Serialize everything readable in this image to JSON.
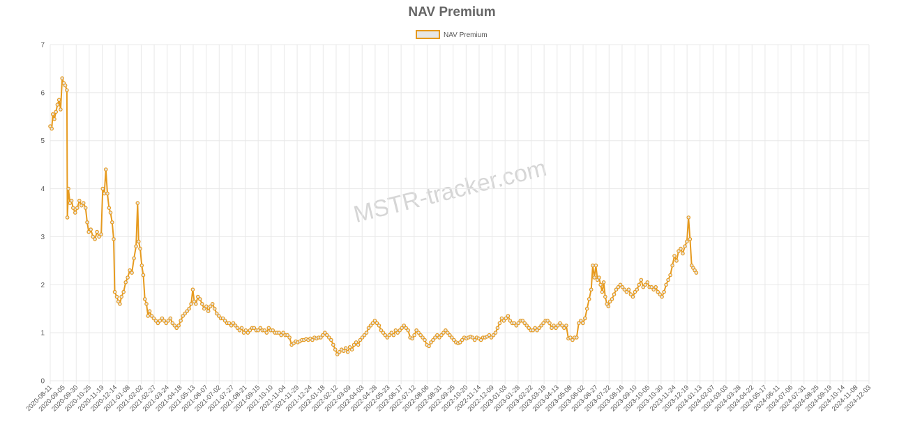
{
  "chart_data": {
    "type": "line",
    "title": "NAV Premium",
    "legend": {
      "label": "NAV Premium",
      "placement": "top-center"
    },
    "watermark": "MSTR-tracker.com",
    "series_color": "#e69a1e",
    "fill_color": "#e6e6e6",
    "grid_color": "#e8e8e8",
    "ylim": [
      0,
      7
    ],
    "yticks": [
      0,
      1,
      2,
      3,
      4,
      5,
      6,
      7
    ],
    "x_labels": [
      "2020-08-11",
      "2020-09-05",
      "2020-09-30",
      "2020-10-25",
      "2020-11-19",
      "2020-12-14",
      "2021-01-08",
      "2021-02-02",
      "2021-02-27",
      "2021-03-24",
      "2021-04-18",
      "2021-05-13",
      "2021-06-07",
      "2021-07-02",
      "2021-07-27",
      "2021-08-21",
      "2021-09-15",
      "2021-10-10",
      "2021-11-04",
      "2021-11-29",
      "2021-12-24",
      "2022-01-18",
      "2022-02-12",
      "2022-03-09",
      "2022-04-03",
      "2022-04-28",
      "2022-05-23",
      "2022-06-17",
      "2022-07-12",
      "2022-08-06",
      "2022-08-31",
      "2022-09-25",
      "2022-10-20",
      "2022-11-14",
      "2022-12-09",
      "2023-01-03",
      "2023-01-28",
      "2023-02-22",
      "2023-03-19",
      "2023-04-13",
      "2023-05-08",
      "2023-06-02",
      "2023-06-27",
      "2023-07-22",
      "2023-08-16",
      "2023-09-10",
      "2023-10-05",
      "2023-10-30",
      "2023-11-24",
      "2023-12-19",
      "2024-01-13",
      "2024-02-07",
      "2024-03-03",
      "2024-03-28",
      "2024-04-22",
      "2024-05-17",
      "2024-06-11",
      "2024-07-06",
      "2024-07-31",
      "2024-08-25",
      "2024-09-19",
      "2024-10-14",
      "2024-11-08",
      "2024-12-03"
    ],
    "x_range": [
      0,
      1574
    ],
    "points_day_value": [
      [
        0,
        5.3
      ],
      [
        3,
        5.25
      ],
      [
        5,
        5.55
      ],
      [
        8,
        5.45
      ],
      [
        11,
        5.6
      ],
      [
        14,
        5.75
      ],
      [
        17,
        5.85
      ],
      [
        20,
        5.65
      ],
      [
        23,
        6.3
      ],
      [
        26,
        6.2
      ],
      [
        29,
        6.15
      ],
      [
        32,
        6.05
      ],
      [
        33,
        3.4
      ],
      [
        35,
        4.0
      ],
      [
        38,
        3.7
      ],
      [
        41,
        3.75
      ],
      [
        44,
        3.6
      ],
      [
        48,
        3.5
      ],
      [
        52,
        3.6
      ],
      [
        56,
        3.75
      ],
      [
        60,
        3.65
      ],
      [
        64,
        3.7
      ],
      [
        68,
        3.6
      ],
      [
        71,
        3.3
      ],
      [
        74,
        3.1
      ],
      [
        78,
        3.15
      ],
      [
        82,
        3.0
      ],
      [
        86,
        2.95
      ],
      [
        90,
        3.1
      ],
      [
        94,
        3.0
      ],
      [
        98,
        3.05
      ],
      [
        101,
        4.0
      ],
      [
        104,
        3.9
      ],
      [
        107,
        4.4
      ],
      [
        110,
        3.9
      ],
      [
        113,
        3.6
      ],
      [
        116,
        3.5
      ],
      [
        119,
        3.3
      ],
      [
        122,
        2.95
      ],
      [
        124,
        1.85
      ],
      [
        128,
        1.75
      ],
      [
        131,
        1.65
      ],
      [
        134,
        1.6
      ],
      [
        137,
        1.75
      ],
      [
        141,
        1.85
      ],
      [
        145,
        2.05
      ],
      [
        149,
        2.15
      ],
      [
        153,
        2.3
      ],
      [
        157,
        2.25
      ],
      [
        161,
        2.55
      ],
      [
        165,
        2.8
      ],
      [
        168,
        3.7
      ],
      [
        170,
        2.9
      ],
      [
        173,
        2.75
      ],
      [
        176,
        2.4
      ],
      [
        179,
        2.2
      ],
      [
        182,
        1.7
      ],
      [
        185,
        1.6
      ],
      [
        188,
        1.35
      ],
      [
        191,
        1.45
      ],
      [
        195,
        1.35
      ],
      [
        199,
        1.3
      ],
      [
        203,
        1.25
      ],
      [
        207,
        1.2
      ],
      [
        211,
        1.25
      ],
      [
        215,
        1.3
      ],
      [
        219,
        1.25
      ],
      [
        223,
        1.2
      ],
      [
        227,
        1.25
      ],
      [
        231,
        1.3
      ],
      [
        235,
        1.2
      ],
      [
        239,
        1.15
      ],
      [
        243,
        1.1
      ],
      [
        247,
        1.15
      ],
      [
        251,
        1.25
      ],
      [
        255,
        1.35
      ],
      [
        259,
        1.4
      ],
      [
        263,
        1.45
      ],
      [
        267,
        1.5
      ],
      [
        271,
        1.6
      ],
      [
        274,
        1.9
      ],
      [
        277,
        1.65
      ],
      [
        280,
        1.6
      ],
      [
        284,
        1.75
      ],
      [
        288,
        1.7
      ],
      [
        292,
        1.6
      ],
      [
        296,
        1.5
      ],
      [
        300,
        1.55
      ],
      [
        304,
        1.45
      ],
      [
        308,
        1.55
      ],
      [
        312,
        1.6
      ],
      [
        316,
        1.5
      ],
      [
        320,
        1.4
      ],
      [
        324,
        1.35
      ],
      [
        328,
        1.3
      ],
      [
        332,
        1.3
      ],
      [
        336,
        1.25
      ],
      [
        340,
        1.2
      ],
      [
        344,
        1.2
      ],
      [
        348,
        1.15
      ],
      [
        352,
        1.2
      ],
      [
        356,
        1.15
      ],
      [
        360,
        1.1
      ],
      [
        364,
        1.05
      ],
      [
        368,
        1.1
      ],
      [
        372,
        1.0
      ],
      [
        376,
        1.05
      ],
      [
        380,
        1.0
      ],
      [
        384,
        1.05
      ],
      [
        388,
        1.1
      ],
      [
        392,
        1.1
      ],
      [
        396,
        1.05
      ],
      [
        400,
        1.05
      ],
      [
        404,
        1.1
      ],
      [
        408,
        1.05
      ],
      [
        412,
        1.05
      ],
      [
        416,
        1.0
      ],
      [
        420,
        1.1
      ],
      [
        424,
        1.05
      ],
      [
        428,
        1.05
      ],
      [
        432,
        1.0
      ],
      [
        436,
        1.0
      ],
      [
        440,
        1.0
      ],
      [
        444,
        0.95
      ],
      [
        448,
        1.0
      ],
      [
        452,
        0.95
      ],
      [
        456,
        0.95
      ],
      [
        460,
        0.9
      ],
      [
        464,
        0.75
      ],
      [
        468,
        0.78
      ],
      [
        472,
        0.82
      ],
      [
        476,
        0.8
      ],
      [
        480,
        0.82
      ],
      [
        484,
        0.85
      ],
      [
        488,
        0.85
      ],
      [
        492,
        0.87
      ],
      [
        496,
        0.85
      ],
      [
        500,
        0.88
      ],
      [
        504,
        0.85
      ],
      [
        508,
        0.9
      ],
      [
        512,
        0.88
      ],
      [
        516,
        0.9
      ],
      [
        520,
        0.9
      ],
      [
        524,
        0.95
      ],
      [
        528,
        1.0
      ],
      [
        532,
        0.95
      ],
      [
        536,
        0.9
      ],
      [
        540,
        0.85
      ],
      [
        544,
        0.75
      ],
      [
        548,
        0.65
      ],
      [
        552,
        0.55
      ],
      [
        556,
        0.6
      ],
      [
        560,
        0.65
      ],
      [
        564,
        0.62
      ],
      [
        568,
        0.68
      ],
      [
        572,
        0.6
      ],
      [
        576,
        0.7
      ],
      [
        580,
        0.65
      ],
      [
        584,
        0.75
      ],
      [
        588,
        0.8
      ],
      [
        592,
        0.75
      ],
      [
        596,
        0.85
      ],
      [
        600,
        0.9
      ],
      [
        604,
        0.95
      ],
      [
        608,
        1.0
      ],
      [
        612,
        1.1
      ],
      [
        616,
        1.15
      ],
      [
        620,
        1.2
      ],
      [
        624,
        1.25
      ],
      [
        628,
        1.2
      ],
      [
        632,
        1.15
      ],
      [
        636,
        1.05
      ],
      [
        640,
        1.0
      ],
      [
        644,
        0.95
      ],
      [
        648,
        0.9
      ],
      [
        652,
        0.95
      ],
      [
        656,
        1.0
      ],
      [
        660,
        0.95
      ],
      [
        664,
        1.05
      ],
      [
        668,
        1.0
      ],
      [
        672,
        1.05
      ],
      [
        676,
        1.1
      ],
      [
        680,
        1.15
      ],
      [
        684,
        1.1
      ],
      [
        688,
        1.05
      ],
      [
        692,
        0.9
      ],
      [
        696,
        0.88
      ],
      [
        700,
        0.95
      ],
      [
        704,
        1.05
      ],
      [
        708,
        1.0
      ],
      [
        712,
        0.95
      ],
      [
        716,
        0.9
      ],
      [
        720,
        0.85
      ],
      [
        724,
        0.75
      ],
      [
        728,
        0.72
      ],
      [
        732,
        0.8
      ],
      [
        736,
        0.85
      ],
      [
        740,
        0.9
      ],
      [
        744,
        0.95
      ],
      [
        748,
        0.9
      ],
      [
        752,
        0.95
      ],
      [
        756,
        1.0
      ],
      [
        760,
        1.05
      ],
      [
        764,
        1.0
      ],
      [
        768,
        0.95
      ],
      [
        772,
        0.9
      ],
      [
        776,
        0.85
      ],
      [
        780,
        0.8
      ],
      [
        784,
        0.78
      ],
      [
        788,
        0.8
      ],
      [
        792,
        0.85
      ],
      [
        796,
        0.9
      ],
      [
        800,
        0.88
      ],
      [
        804,
        0.9
      ],
      [
        808,
        0.92
      ],
      [
        812,
        0.9
      ],
      [
        816,
        0.85
      ],
      [
        820,
        0.9
      ],
      [
        824,
        0.88
      ],
      [
        828,
        0.85
      ],
      [
        832,
        0.9
      ],
      [
        836,
        0.9
      ],
      [
        840,
        0.92
      ],
      [
        844,
        0.95
      ],
      [
        848,
        0.9
      ],
      [
        852,
        0.95
      ],
      [
        856,
        1.0
      ],
      [
        860,
        1.1
      ],
      [
        864,
        1.2
      ],
      [
        868,
        1.3
      ],
      [
        872,
        1.25
      ],
      [
        876,
        1.3
      ],
      [
        880,
        1.35
      ],
      [
        884,
        1.25
      ],
      [
        888,
        1.2
      ],
      [
        892,
        1.2
      ],
      [
        896,
        1.15
      ],
      [
        900,
        1.2
      ],
      [
        904,
        1.25
      ],
      [
        908,
        1.25
      ],
      [
        912,
        1.2
      ],
      [
        916,
        1.15
      ],
      [
        920,
        1.1
      ],
      [
        924,
        1.05
      ],
      [
        928,
        1.05
      ],
      [
        932,
        1.1
      ],
      [
        936,
        1.05
      ],
      [
        940,
        1.1
      ],
      [
        944,
        1.15
      ],
      [
        948,
        1.2
      ],
      [
        952,
        1.25
      ],
      [
        956,
        1.25
      ],
      [
        960,
        1.2
      ],
      [
        964,
        1.1
      ],
      [
        968,
        1.15
      ],
      [
        972,
        1.1
      ],
      [
        976,
        1.15
      ],
      [
        980,
        1.2
      ],
      [
        984,
        1.15
      ],
      [
        988,
        1.1
      ],
      [
        992,
        1.15
      ],
      [
        996,
        0.88
      ],
      [
        1000,
        0.9
      ],
      [
        1004,
        0.85
      ],
      [
        1008,
        0.9
      ],
      [
        1012,
        0.9
      ],
      [
        1016,
        1.2
      ],
      [
        1020,
        1.25
      ],
      [
        1024,
        1.2
      ],
      [
        1028,
        1.3
      ],
      [
        1032,
        1.5
      ],
      [
        1036,
        1.7
      ],
      [
        1040,
        1.9
      ],
      [
        1043,
        2.4
      ],
      [
        1046,
        2.15
      ],
      [
        1049,
        2.4
      ],
      [
        1052,
        2.1
      ],
      [
        1055,
        2.15
      ],
      [
        1058,
        2.0
      ],
      [
        1061,
        1.85
      ],
      [
        1064,
        2.05
      ],
      [
        1067,
        1.75
      ],
      [
        1070,
        1.6
      ],
      [
        1073,
        1.55
      ],
      [
        1076,
        1.65
      ],
      [
        1080,
        1.7
      ],
      [
        1084,
        1.8
      ],
      [
        1088,
        1.9
      ],
      [
        1092,
        1.95
      ],
      [
        1096,
        2.0
      ],
      [
        1100,
        1.95
      ],
      [
        1104,
        1.9
      ],
      [
        1108,
        1.85
      ],
      [
        1112,
        1.9
      ],
      [
        1116,
        1.8
      ],
      [
        1120,
        1.75
      ],
      [
        1124,
        1.85
      ],
      [
        1128,
        1.9
      ],
      [
        1132,
        2.0
      ],
      [
        1136,
        2.1
      ],
      [
        1140,
        1.95
      ],
      [
        1144,
        2.0
      ],
      [
        1148,
        2.05
      ],
      [
        1152,
        1.95
      ],
      [
        1156,
        1.95
      ],
      [
        1160,
        1.9
      ],
      [
        1164,
        1.95
      ],
      [
        1168,
        1.85
      ],
      [
        1172,
        1.8
      ],
      [
        1176,
        1.75
      ],
      [
        1180,
        1.85
      ],
      [
        1184,
        2.0
      ],
      [
        1188,
        2.1
      ],
      [
        1192,
        2.2
      ],
      [
        1196,
        2.4
      ],
      [
        1200,
        2.6
      ],
      [
        1204,
        2.5
      ],
      [
        1208,
        2.7
      ],
      [
        1212,
        2.75
      ],
      [
        1216,
        2.65
      ],
      [
        1220,
        2.8
      ],
      [
        1224,
        2.9
      ],
      [
        1227,
        3.4
      ],
      [
        1230,
        2.95
      ],
      [
        1233,
        2.4
      ],
      [
        1236,
        2.35
      ],
      [
        1239,
        2.3
      ],
      [
        1242,
        2.25
      ]
    ]
  }
}
